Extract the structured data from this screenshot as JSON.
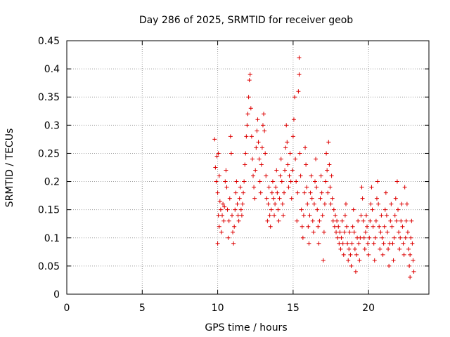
{
  "chart_data": {
    "type": "scatter",
    "title": "Day 286 of 2025, SRMTID for receiver geob",
    "xlabel": "GPS time / hours",
    "ylabel": "SRMTID / TECUs",
    "xlim": [
      0,
      24
    ],
    "ylim": [
      0,
      0.45
    ],
    "x_ticks": [
      0,
      5,
      10,
      15,
      20
    ],
    "x_tick_labels": [
      "0",
      "5",
      "10",
      "15",
      "20"
    ],
    "y_ticks": [
      0,
      0.05,
      0.1,
      0.15,
      0.2,
      0.25,
      0.3,
      0.35,
      0.4,
      0.45
    ],
    "y_tick_labels": [
      "0",
      "0.05",
      "0.1",
      "0.15",
      "0.2",
      "0.25",
      "0.3",
      "0.35",
      "0.4",
      "0.45"
    ],
    "grid": true,
    "marker": "+",
    "series": [
      {
        "name": "SRMTID",
        "color": "#dd0000",
        "points": [
          [
            9.8,
            0.275
          ],
          [
            9.85,
            0.225
          ],
          [
            9.9,
            0.2
          ],
          [
            9.95,
            0.245
          ],
          [
            10.0,
            0.18
          ],
          [
            10.0,
            0.09
          ],
          [
            10.05,
            0.14
          ],
          [
            10.05,
            0.25
          ],
          [
            10.1,
            0.21
          ],
          [
            10.1,
            0.12
          ],
          [
            10.15,
            0.165
          ],
          [
            10.2,
            0.15
          ],
          [
            10.25,
            0.11
          ],
          [
            10.3,
            0.14
          ],
          [
            10.35,
            0.16
          ],
          [
            10.4,
            0.13
          ],
          [
            10.45,
            0.155
          ],
          [
            10.5,
            0.2
          ],
          [
            10.55,
            0.22
          ],
          [
            10.6,
            0.19
          ],
          [
            10.65,
            0.15
          ],
          [
            10.7,
            0.1
          ],
          [
            10.75,
            0.13
          ],
          [
            10.8,
            0.17
          ],
          [
            10.85,
            0.28
          ],
          [
            10.9,
            0.25
          ],
          [
            10.95,
            0.14
          ],
          [
            11.0,
            0.11
          ],
          [
            11.05,
            0.09
          ],
          [
            11.1,
            0.12
          ],
          [
            11.15,
            0.15
          ],
          [
            11.2,
            0.18
          ],
          [
            11.25,
            0.2
          ],
          [
            11.3,
            0.16
          ],
          [
            11.35,
            0.14
          ],
          [
            11.4,
            0.13
          ],
          [
            11.45,
            0.17
          ],
          [
            11.5,
            0.19
          ],
          [
            11.55,
            0.15
          ],
          [
            11.6,
            0.14
          ],
          [
            11.65,
            0.16
          ],
          [
            11.7,
            0.18
          ],
          [
            11.75,
            0.2
          ],
          [
            11.8,
            0.23
          ],
          [
            11.85,
            0.25
          ],
          [
            11.9,
            0.28
          ],
          [
            11.95,
            0.3
          ],
          [
            12.0,
            0.32
          ],
          [
            12.05,
            0.35
          ],
          [
            12.1,
            0.38
          ],
          [
            12.15,
            0.39
          ],
          [
            12.2,
            0.33
          ],
          [
            12.25,
            0.28
          ],
          [
            12.3,
            0.24
          ],
          [
            12.35,
            0.21
          ],
          [
            12.4,
            0.19
          ],
          [
            12.45,
            0.17
          ],
          [
            12.5,
            0.22
          ],
          [
            12.55,
            0.26
          ],
          [
            12.6,
            0.29
          ],
          [
            12.65,
            0.31
          ],
          [
            12.7,
            0.27
          ],
          [
            12.75,
            0.24
          ],
          [
            12.8,
            0.2
          ],
          [
            12.85,
            0.18
          ],
          [
            12.9,
            0.23
          ],
          [
            12.95,
            0.26
          ],
          [
            13.0,
            0.3
          ],
          [
            13.05,
            0.32
          ],
          [
            13.1,
            0.29
          ],
          [
            13.15,
            0.25
          ],
          [
            13.2,
            0.21
          ],
          [
            13.25,
            0.17
          ],
          [
            13.3,
            0.13
          ],
          [
            13.35,
            0.16
          ],
          [
            13.4,
            0.19
          ],
          [
            13.45,
            0.14
          ],
          [
            13.5,
            0.12
          ],
          [
            13.55,
            0.15
          ],
          [
            13.6,
            0.18
          ],
          [
            13.65,
            0.2
          ],
          [
            13.7,
            0.17
          ],
          [
            13.75,
            0.14
          ],
          [
            13.8,
            0.16
          ],
          [
            13.85,
            0.19
          ],
          [
            13.9,
            0.22
          ],
          [
            13.95,
            0.18
          ],
          [
            14.0,
            0.15
          ],
          [
            14.05,
            0.13
          ],
          [
            14.1,
            0.17
          ],
          [
            14.15,
            0.21
          ],
          [
            14.2,
            0.24
          ],
          [
            14.25,
            0.2
          ],
          [
            14.3,
            0.16
          ],
          [
            14.35,
            0.14
          ],
          [
            14.4,
            0.18
          ],
          [
            14.45,
            0.22
          ],
          [
            14.5,
            0.26
          ],
          [
            14.55,
            0.3
          ],
          [
            14.6,
            0.27
          ],
          [
            14.65,
            0.23
          ],
          [
            14.7,
            0.19
          ],
          [
            14.75,
            0.21
          ],
          [
            14.8,
            0.25
          ],
          [
            14.85,
            0.2
          ],
          [
            14.9,
            0.17
          ],
          [
            14.95,
            0.22
          ],
          [
            15.0,
            0.28
          ],
          [
            15.05,
            0.31
          ],
          [
            15.1,
            0.35
          ],
          [
            15.15,
            0.24
          ],
          [
            15.2,
            0.2
          ],
          [
            15.25,
            0.13
          ],
          [
            15.3,
            0.18
          ],
          [
            15.35,
            0.36
          ],
          [
            15.4,
            0.42
          ],
          [
            15.4,
            0.39
          ],
          [
            15.45,
            0.25
          ],
          [
            15.5,
            0.21
          ],
          [
            15.55,
            0.15
          ],
          [
            15.6,
            0.12
          ],
          [
            15.65,
            0.1
          ],
          [
            15.7,
            0.14
          ],
          [
            15.75,
            0.18
          ],
          [
            15.8,
            0.26
          ],
          [
            15.85,
            0.23
          ],
          [
            15.9,
            0.19
          ],
          [
            15.95,
            0.16
          ],
          [
            16.0,
            0.12
          ],
          [
            16.05,
            0.09
          ],
          [
            16.1,
            0.14
          ],
          [
            16.15,
            0.18
          ],
          [
            16.2,
            0.21
          ],
          [
            16.25,
            0.17
          ],
          [
            16.3,
            0.13
          ],
          [
            16.35,
            0.11
          ],
          [
            16.4,
            0.16
          ],
          [
            16.45,
            0.2
          ],
          [
            16.5,
            0.24
          ],
          [
            16.55,
            0.19
          ],
          [
            16.6,
            0.15
          ],
          [
            16.65,
            0.12
          ],
          [
            16.7,
            0.09
          ],
          [
            16.75,
            0.13
          ],
          [
            16.8,
            0.17
          ],
          [
            16.85,
            0.21
          ],
          [
            16.9,
            0.18
          ],
          [
            16.95,
            0.14
          ],
          [
            17.0,
            0.06
          ],
          [
            17.05,
            0.11
          ],
          [
            17.1,
            0.16
          ],
          [
            17.15,
            0.2
          ],
          [
            17.2,
            0.25
          ],
          [
            17.25,
            0.22
          ],
          [
            17.3,
            0.18
          ],
          [
            17.35,
            0.27
          ],
          [
            17.4,
            0.23
          ],
          [
            17.45,
            0.19
          ],
          [
            17.5,
            0.16
          ],
          [
            17.55,
            0.21
          ],
          [
            17.6,
            0.17
          ],
          [
            17.65,
            0.13
          ],
          [
            17.7,
            0.15
          ],
          [
            17.75,
            0.12
          ],
          [
            17.8,
            0.14
          ],
          [
            17.85,
            0.11
          ],
          [
            17.9,
            0.13
          ],
          [
            17.95,
            0.1
          ],
          [
            18.0,
            0.12
          ],
          [
            18.05,
            0.09
          ],
          [
            18.1,
            0.11
          ],
          [
            18.15,
            0.08
          ],
          [
            18.2,
            0.1
          ],
          [
            18.25,
            0.13
          ],
          [
            18.3,
            0.09
          ],
          [
            18.35,
            0.07
          ],
          [
            18.4,
            0.11
          ],
          [
            18.45,
            0.14
          ],
          [
            18.5,
            0.16
          ],
          [
            18.55,
            0.12
          ],
          [
            18.6,
            0.09
          ],
          [
            18.65,
            0.06
          ],
          [
            18.7,
            0.08
          ],
          [
            18.75,
            0.11
          ],
          [
            18.8,
            0.07
          ],
          [
            18.85,
            0.05
          ],
          [
            18.9,
            0.09
          ],
          [
            18.95,
            0.12
          ],
          [
            19.0,
            0.15
          ],
          [
            19.05,
            0.11
          ],
          [
            19.1,
            0.08
          ],
          [
            19.15,
            0.04
          ],
          [
            19.2,
            0.07
          ],
          [
            19.25,
            0.1
          ],
          [
            19.3,
            0.13
          ],
          [
            19.35,
            0.09
          ],
          [
            19.4,
            0.06
          ],
          [
            19.45,
            0.1
          ],
          [
            19.5,
            0.14
          ],
          [
            19.55,
            0.19
          ],
          [
            19.6,
            0.17
          ],
          [
            19.65,
            0.13
          ],
          [
            19.7,
            0.1
          ],
          [
            19.75,
            0.08
          ],
          [
            19.8,
            0.11
          ],
          [
            19.85,
            0.14
          ],
          [
            19.9,
            0.12
          ],
          [
            19.95,
            0.09
          ],
          [
            20.0,
            0.07
          ],
          [
            20.05,
            0.1
          ],
          [
            20.1,
            0.13
          ],
          [
            20.15,
            0.16
          ],
          [
            20.2,
            0.19
          ],
          [
            20.25,
            0.15
          ],
          [
            20.3,
            0.12
          ],
          [
            20.35,
            0.09
          ],
          [
            20.4,
            0.06
          ],
          [
            20.45,
            0.1
          ],
          [
            20.5,
            0.13
          ],
          [
            20.55,
            0.17
          ],
          [
            20.6,
            0.2
          ],
          [
            20.65,
            0.16
          ],
          [
            20.7,
            0.12
          ],
          [
            20.75,
            0.08
          ],
          [
            20.8,
            0.11
          ],
          [
            20.85,
            0.14
          ],
          [
            20.9,
            0.1
          ],
          [
            20.95,
            0.07
          ],
          [
            21.0,
            0.09
          ],
          [
            21.05,
            0.12
          ],
          [
            21.1,
            0.15
          ],
          [
            21.15,
            0.18
          ],
          [
            21.2,
            0.14
          ],
          [
            21.25,
            0.11
          ],
          [
            21.3,
            0.08
          ],
          [
            21.35,
            0.05
          ],
          [
            21.4,
            0.09
          ],
          [
            21.45,
            0.13
          ],
          [
            21.5,
            0.16
          ],
          [
            21.55,
            0.12
          ],
          [
            21.6,
            0.09
          ],
          [
            21.65,
            0.06
          ],
          [
            21.7,
            0.1
          ],
          [
            21.75,
            0.14
          ],
          [
            21.8,
            0.17
          ],
          [
            21.85,
            0.13
          ],
          [
            21.9,
            0.2
          ],
          [
            21.95,
            0.15
          ],
          [
            22.0,
            0.11
          ],
          [
            22.05,
            0.08
          ],
          [
            22.1,
            0.1
          ],
          [
            22.15,
            0.13
          ],
          [
            22.2,
            0.16
          ],
          [
            22.25,
            0.12
          ],
          [
            22.3,
            0.09
          ],
          [
            22.35,
            0.07
          ],
          [
            22.4,
            0.19
          ],
          [
            22.45,
            0.1
          ],
          [
            22.5,
            0.13
          ],
          [
            22.55,
            0.16
          ],
          [
            22.6,
            0.11
          ],
          [
            22.65,
            0.08
          ],
          [
            22.7,
            0.05
          ],
          [
            22.75,
            0.07
          ],
          [
            22.75,
            0.03
          ],
          [
            22.8,
            0.1
          ],
          [
            22.85,
            0.13
          ],
          [
            22.9,
            0.09
          ],
          [
            22.95,
            0.06
          ],
          [
            23.0,
            0.04
          ]
        ]
      }
    ]
  }
}
